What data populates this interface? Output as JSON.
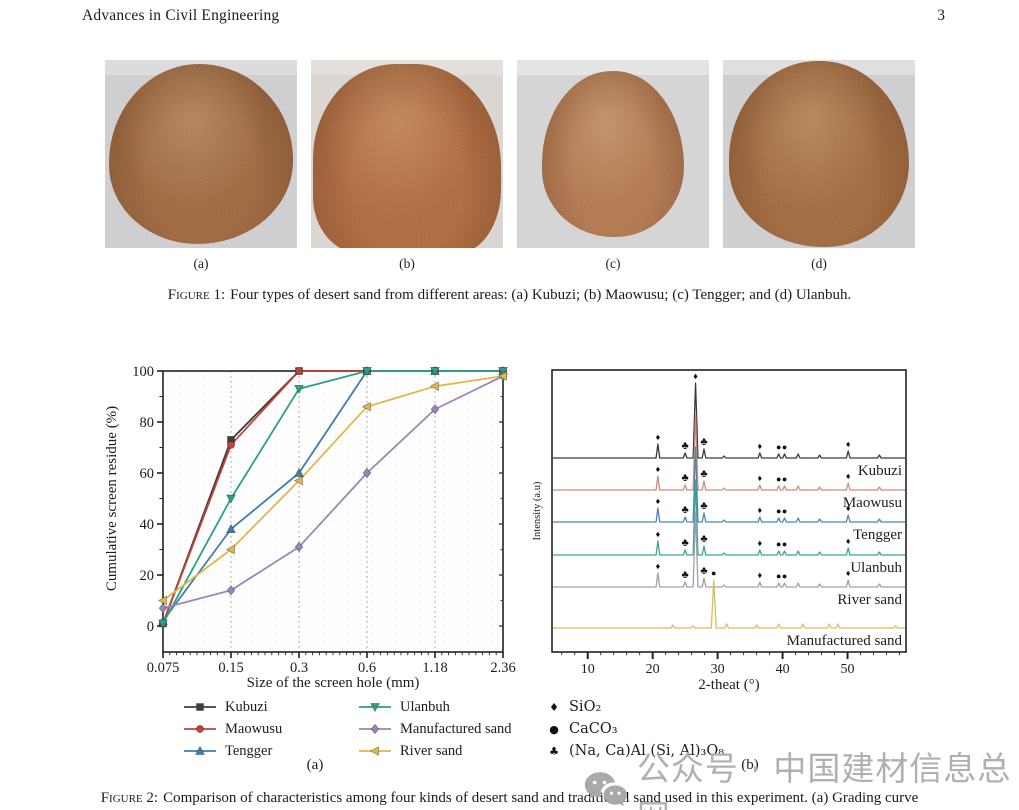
{
  "header": {
    "journal": "Advances in Civil Engineering",
    "page_number": "3"
  },
  "figure1": {
    "photos": [
      {
        "label": "(a)",
        "area": "Kubuzi",
        "sand_color": "#a0673c",
        "bg_color": "#cfcfd1",
        "bg_top": "#dcdcde",
        "shape": "wide-oval"
      },
      {
        "label": "(b)",
        "area": "Maowusu",
        "sand_color": "#b26a3c",
        "bg_color": "#dad7d3",
        "bg_top": "#e3e0dc",
        "shape": "full-blob"
      },
      {
        "label": "(c)",
        "area": "Tengger",
        "sand_color": "#b5784e",
        "bg_color": "#d5d5d5",
        "bg_top": "#e4e4e4",
        "shape": "cone"
      },
      {
        "label": "(d)",
        "area": "Ulanbuh",
        "sand_color": "#a4693c",
        "bg_color": "#cfcfd2",
        "bg_top": "#dfdfe1",
        "shape": "big-oval"
      }
    ],
    "caption_label": "Figure 1:",
    "caption_text": "Four types of desert sand from different areas: (a) Kubuzi; (b) Maowusu; (c) Tengger; and (d) Ulanbuh."
  },
  "figure2": {
    "caption_label": "Figure 2:",
    "caption_text": "Comparison of characteristics among four kinds of desert sand and traditional sand used in this experiment. (a) Grading curve",
    "sublabel_a": "(a)",
    "sublabel_b": "(b)"
  },
  "watermark": {
    "icon": "wechat-icon",
    "text": "公众号 · 中国建材信息总网",
    "color": "#b1b0ae"
  },
  "chart_data": [
    {
      "id": "grading-curve",
      "type": "line",
      "title": "",
      "xlabel": "Size of the screen hole (mm)",
      "ylabel": "Cumulative screen residue (%)",
      "categories": [
        "0.075",
        "0.15",
        "0.3",
        "0.6",
        "1.18",
        "2.36"
      ],
      "ylim": [
        0,
        100
      ],
      "yticks": [
        0,
        20,
        40,
        60,
        80,
        100
      ],
      "grid": "dotted-vertical",
      "legend_position": "below",
      "series": [
        {
          "name": "Kubuzi",
          "color": "#3d3d3d",
          "marker": "square",
          "values": [
            1,
            73,
            100,
            100,
            100,
            100
          ]
        },
        {
          "name": "Maowusu",
          "color": "#c04337",
          "marker": "circle",
          "values": [
            1,
            71,
            100,
            100,
            100,
            100
          ]
        },
        {
          "name": "Tengger",
          "color": "#3e7dac",
          "marker": "triangle-up",
          "values": [
            2,
            38,
            60,
            100,
            100,
            100
          ]
        },
        {
          "name": "Ulanbuh",
          "color": "#2aa185",
          "marker": "triangle-down",
          "values": [
            1,
            50,
            93,
            100,
            100,
            100
          ]
        },
        {
          "name": "Manufactured sand",
          "color": "#9b85bb",
          "marker": "diamond",
          "values": [
            7,
            14,
            31,
            60,
            85,
            98
          ]
        },
        {
          "name": "River sand",
          "color": "#dfb84d",
          "marker": "triangle-left",
          "values": [
            10,
            30,
            57,
            86,
            94,
            98
          ]
        }
      ]
    },
    {
      "id": "xrd-patterns",
      "type": "line",
      "title": "",
      "xlabel": "2-theat (°)",
      "ylabel": "Intensity (a.u)",
      "xlim": [
        4.5,
        59
      ],
      "xticks": [
        10,
        20,
        30,
        40,
        50
      ],
      "traces": [
        {
          "name": "Kubuzi",
          "color": "#3a3a3a",
          "peaks": [
            [
              20.8,
              14
            ],
            [
              25.0,
              5
            ],
            [
              26.6,
              75
            ],
            [
              27.9,
              9
            ],
            [
              31.0,
              2
            ],
            [
              36.5,
              5
            ],
            [
              39.4,
              4
            ],
            [
              40.3,
              4
            ],
            [
              42.4,
              4
            ],
            [
              45.7,
              3
            ],
            [
              50.1,
              7
            ],
            [
              54.9,
              3
            ]
          ],
          "markers": [
            [
              20.8,
              "diamond"
            ],
            [
              25.0,
              "club"
            ],
            [
              26.6,
              "diamond"
            ],
            [
              27.9,
              "club"
            ],
            [
              36.5,
              "diamond"
            ],
            [
              39.4,
              "circle"
            ],
            [
              40.3,
              "circle"
            ],
            [
              50.1,
              "diamond"
            ]
          ]
        },
        {
          "name": "Maowusu",
          "color": "#d4897f",
          "peaks": [
            [
              20.8,
              14
            ],
            [
              25.0,
              5
            ],
            [
              26.6,
              75
            ],
            [
              27.9,
              9
            ],
            [
              31.0,
              2
            ],
            [
              36.5,
              5
            ],
            [
              39.4,
              4
            ],
            [
              40.3,
              4
            ],
            [
              42.4,
              4
            ],
            [
              45.7,
              3
            ],
            [
              50.1,
              7
            ],
            [
              54.9,
              3
            ]
          ],
          "markers": [
            [
              20.8,
              "diamond"
            ],
            [
              25.0,
              "club"
            ],
            [
              27.9,
              "club"
            ],
            [
              36.5,
              "diamond"
            ],
            [
              39.4,
              "circle"
            ],
            [
              40.3,
              "circle"
            ],
            [
              50.1,
              "diamond"
            ]
          ]
        },
        {
          "name": "Tengger",
          "color": "#4e86b2",
          "peaks": [
            [
              20.8,
              14
            ],
            [
              25.0,
              5
            ],
            [
              26.6,
              75
            ],
            [
              27.9,
              9
            ],
            [
              31.0,
              2
            ],
            [
              36.5,
              5
            ],
            [
              39.4,
              4
            ],
            [
              40.3,
              4
            ],
            [
              42.4,
              4
            ],
            [
              45.7,
              3
            ],
            [
              50.1,
              7
            ],
            [
              54.9,
              3
            ]
          ],
          "markers": [
            [
              20.8,
              "diamond"
            ],
            [
              25.0,
              "club"
            ],
            [
              27.9,
              "club"
            ],
            [
              36.5,
              "diamond"
            ],
            [
              39.4,
              "circle"
            ],
            [
              40.3,
              "circle"
            ],
            [
              50.1,
              "diamond"
            ]
          ]
        },
        {
          "name": "Ulanbuh",
          "color": "#39a78c",
          "peaks": [
            [
              20.8,
              14
            ],
            [
              25.0,
              5
            ],
            [
              26.6,
              75
            ],
            [
              27.9,
              9
            ],
            [
              31.0,
              2
            ],
            [
              36.5,
              5
            ],
            [
              39.4,
              4
            ],
            [
              40.3,
              4
            ],
            [
              42.4,
              4
            ],
            [
              45.7,
              3
            ],
            [
              50.1,
              7
            ],
            [
              54.9,
              3
            ]
          ],
          "markers": [
            [
              20.8,
              "diamond"
            ],
            [
              25.0,
              "club"
            ],
            [
              27.9,
              "club"
            ],
            [
              36.5,
              "diamond"
            ],
            [
              39.4,
              "circle"
            ],
            [
              40.3,
              "circle"
            ],
            [
              50.1,
              "diamond"
            ]
          ]
        },
        {
          "name": "River sand",
          "color": "#a79cb0",
          "peaks": [
            [
              20.8,
              14
            ],
            [
              25.0,
              5
            ],
            [
              26.6,
              75
            ],
            [
              27.9,
              9
            ],
            [
              31.0,
              2
            ],
            [
              36.5,
              5
            ],
            [
              39.4,
              4
            ],
            [
              40.3,
              4
            ],
            [
              42.4,
              4
            ],
            [
              45.7,
              3
            ],
            [
              50.1,
              7
            ],
            [
              54.9,
              3
            ]
          ],
          "markers": [
            [
              20.8,
              "diamond"
            ],
            [
              25.0,
              "club"
            ],
            [
              27.9,
              "club"
            ],
            [
              36.5,
              "diamond"
            ],
            [
              39.4,
              "circle"
            ],
            [
              40.3,
              "circle"
            ],
            [
              50.1,
              "diamond"
            ]
          ]
        },
        {
          "name": "Manufactured sand",
          "color": "#d6bd5f",
          "peaks": [
            [
              23.1,
              3
            ],
            [
              26.2,
              2
            ],
            [
              29.4,
              48
            ],
            [
              31.4,
              4
            ],
            [
              36.0,
              3
            ],
            [
              39.4,
              4
            ],
            [
              43.1,
              4
            ],
            [
              47.2,
              4
            ],
            [
              48.5,
              4
            ],
            [
              57.4,
              2
            ]
          ],
          "markers": [
            [
              29.4,
              "circle"
            ]
          ]
        }
      ],
      "marker_legend": [
        {
          "symbol": "diamond",
          "label": "SiO₂"
        },
        {
          "symbol": "circle",
          "label": "CaCO₃"
        },
        {
          "symbol": "club",
          "label": "(Na, Ca)Al (Si, Al)₃O₈"
        }
      ]
    }
  ]
}
